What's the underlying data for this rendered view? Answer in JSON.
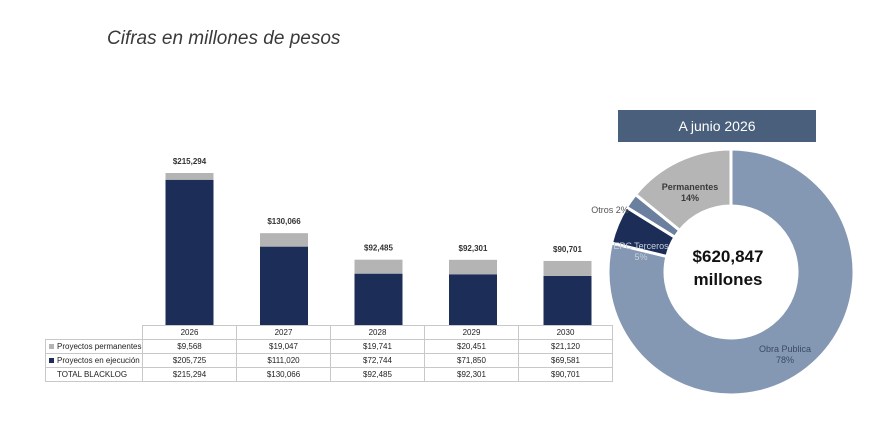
{
  "subtitle": "Cifras en millones de pesos",
  "chart_data": [
    {
      "type": "bar",
      "stacked": true,
      "categories": [
        "2026",
        "2027",
        "2028",
        "2029",
        "2030"
      ],
      "series": [
        {
          "name": "Proyectos permanentes",
          "values": [
            9568,
            19047,
            19741,
            20451,
            21120
          ],
          "color": "#b4b4b4"
        },
        {
          "name": "Proyectos en ejecución",
          "values": [
            205725,
            111020,
            72744,
            71850,
            69581
          ],
          "color": "#1c2e57"
        }
      ],
      "totals": [
        215294,
        130066,
        92485,
        92301,
        90701
      ],
      "total_labels": [
        "$215,294",
        "$130,066",
        "$92,485",
        "$92,301",
        "$90,701"
      ],
      "table": {
        "header": [
          "2026",
          "2027",
          "2028",
          "2029",
          "2030"
        ],
        "rows": [
          {
            "label": "Proyectos permanentes",
            "swatch": "#b4b4b4",
            "cells": [
              "$9,568",
              "$19,047",
              "$19,741",
              "$20,451",
              "$21,120"
            ]
          },
          {
            "label": "Proyectos en ejecución",
            "swatch": "#1c2e57",
            "cells": [
              "$205,725",
              "$111,020",
              "$72,744",
              "$71,850",
              "$69,581"
            ]
          },
          {
            "label": "TOTAL BLACKLOG",
            "swatch": "",
            "cells": [
              "$215,294",
              "$130,066",
              "$92,485",
              "$92,301",
              "$90,701"
            ]
          }
        ]
      },
      "ylim": [
        0,
        215294
      ],
      "grid": false
    },
    {
      "type": "pie",
      "donut": true,
      "title": "A junio 2026",
      "center_value": "$620,847",
      "center_unit": "millones",
      "slices": [
        {
          "name": "Obra Publica",
          "pct_label": "78%",
          "value": 78,
          "color": "#8497b3",
          "label_color": "#3a4a66"
        },
        {
          "name": "EPC Terceros",
          "pct_label": "5%",
          "value": 5,
          "color": "#1c2e57",
          "label_color": "#c8d0de"
        },
        {
          "name": "Otros",
          "pct_label": "2%",
          "value": 2,
          "color": "#6b7f9f",
          "label_color": "#555"
        },
        {
          "name": "Permanentes",
          "pct_label": "14%",
          "value": 14,
          "color": "#b5b5b5",
          "label_color": "#3a3a3a"
        }
      ]
    }
  ]
}
